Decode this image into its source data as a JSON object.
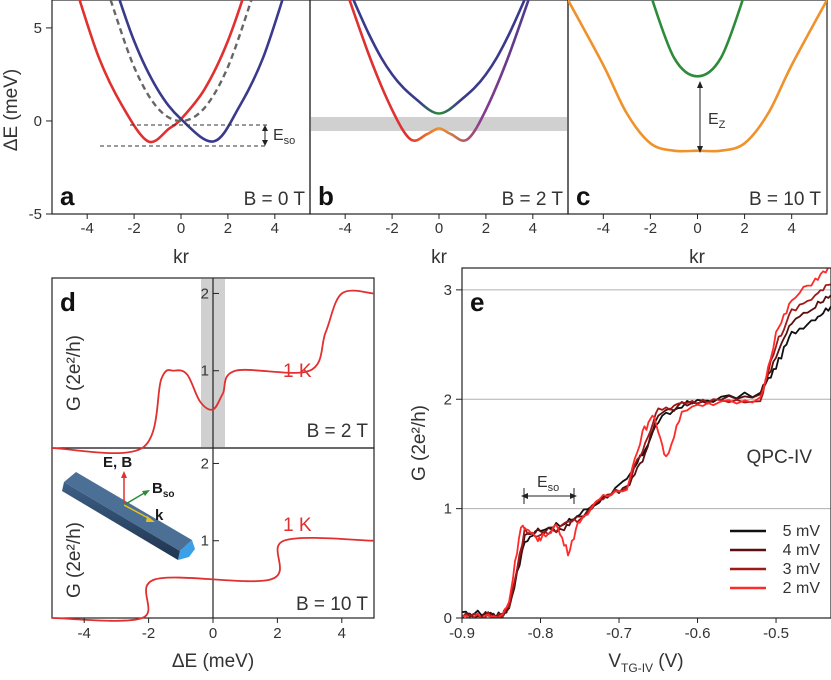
{
  "figure": {
    "panels": [
      {
        "letter": "a",
        "field": "B = 0 T"
      },
      {
        "letter": "b",
        "field": "B = 2 T"
      },
      {
        "letter": "c",
        "field": "B = 10 T"
      },
      {
        "letter": "d",
        "field_top": "B = 2 T",
        "field_bottom": "B = 10 T",
        "temp": "1 K"
      },
      {
        "letter": "e",
        "device": "QPC-IV"
      }
    ],
    "labels": {
      "energy_axis": "ΔE (meV)",
      "kr": "kr",
      "g_axis": "G (2e²/h)",
      "delta_e_axis": "ΔE (meV)",
      "vtg_axis": "V",
      "vtg_sub": "TG-IV",
      "vtg_unit": " (V)",
      "eso": "E",
      "eso_sub": "so",
      "ez": "E",
      "ez_sub": "Z",
      "inset_eb": "E, B",
      "inset_bso": "B",
      "inset_bso_sub": "so",
      "inset_k": "k"
    },
    "colors": {
      "red": "#e03030",
      "blue": "#3a3a8c",
      "green": "#2e8b3a",
      "orange": "#f0922b",
      "gray_band": "#d0d0d0",
      "nanowire": "#2e4a6b"
    }
  },
  "chart_data": [
    {
      "type": "line",
      "panel": "a",
      "title": "",
      "xlabel": "kr",
      "ylabel": "ΔE (meV)",
      "xlim": [
        -5.5,
        5.5
      ],
      "ylim": [
        -5,
        6.5
      ],
      "xticks": [
        "-4",
        "-2",
        "0",
        "2",
        "4"
      ],
      "yticks": [
        "-5",
        "0",
        "5"
      ],
      "series": [
        {
          "style": "red",
          "x": [
            -4.5,
            -3.5,
            -2.5,
            -1.4,
            -0.5,
            0,
            1,
            2,
            3,
            3.6
          ],
          "y": [
            7.2,
            3.4,
            0.8,
            -1.1,
            -0.4,
            0.1,
            1.7,
            4.3,
            8.0,
            10.7
          ]
        },
        {
          "style": "blue",
          "x": [
            -3.6,
            -3,
            -2,
            -1,
            0,
            1.4,
            2.5,
            3.5,
            4.5
          ],
          "y": [
            10.7,
            8.0,
            4.3,
            1.7,
            0.1,
            -1.1,
            0.8,
            3.4,
            7.2
          ]
        },
        {
          "style": "gray-dashed",
          "x": [
            -3,
            -2,
            -1,
            0,
            1,
            2,
            3
          ],
          "y": [
            6.5,
            2.9,
            0.7,
            0.0,
            0.7,
            2.9,
            6.5
          ]
        }
      ]
    },
    {
      "type": "line",
      "panel": "b",
      "title": "",
      "xlabel": "kr",
      "ylabel": "",
      "xlim": [
        -5.5,
        5.5
      ],
      "ylim": [
        -5,
        6.5
      ],
      "xticks": [
        "-4",
        "-2",
        "0",
        "2",
        "4"
      ],
      "series": [
        {
          "style": "upper",
          "x": [
            -4.5,
            -3,
            -2,
            -1,
            0,
            1,
            2,
            3,
            4.5
          ],
          "y": [
            9.0,
            4.7,
            2.5,
            1.2,
            0.4,
            1.2,
            2.5,
            4.7,
            9.0
          ]
        },
        {
          "style": "lower",
          "x": [
            -4.5,
            -3,
            -2,
            -1.2,
            -0.5,
            0,
            0.5,
            1.2,
            2,
            3,
            4.5
          ],
          "y": [
            9.0,
            3.6,
            0.6,
            -1.0,
            -0.7,
            -0.4,
            -0.7,
            -1.0,
            0.6,
            3.6,
            9.0
          ]
        }
      ]
    },
    {
      "type": "line",
      "panel": "c",
      "title": "",
      "xlabel": "kr",
      "ylabel": "",
      "xlim": [
        -5.5,
        5.5
      ],
      "ylim": [
        -5,
        6.5
      ],
      "xticks": [
        "-4",
        "-2",
        "0",
        "2",
        "4"
      ],
      "series": [
        {
          "style": "green",
          "x": [
            -2,
            -1,
            0,
            1,
            2
          ],
          "y": [
            6.8,
            3.4,
            2.4,
            3.4,
            6.8
          ]
        },
        {
          "style": "orange",
          "x": [
            -5.5,
            -4,
            -3,
            -2,
            -1,
            0,
            1,
            2,
            3,
            4,
            5.5
          ],
          "y": [
            6.5,
            3.0,
            0.4,
            -1.2,
            -1.6,
            -1.6,
            -1.6,
            -1.2,
            0.4,
            3.0,
            6.5
          ]
        }
      ]
    },
    {
      "type": "line",
      "panel": "d-top",
      "title": "",
      "xlabel": "",
      "ylabel": "G (2e²/h)",
      "xlim": [
        -5,
        5
      ],
      "ylim": [
        0,
        2.2
      ],
      "yticks": [
        "1",
        "2"
      ],
      "series": [
        {
          "name": "1 K",
          "x": [
            -5,
            -2.2,
            -1.6,
            -1.2,
            -0.8,
            -0.4,
            0,
            0.3,
            0.7,
            3,
            3.5,
            4,
            5
          ],
          "y": [
            0,
            0,
            0.9,
            1.0,
            0.95,
            0.6,
            0.5,
            0.7,
            1.0,
            1.0,
            1.5,
            2.0,
            2.0
          ]
        }
      ]
    },
    {
      "type": "line",
      "panel": "d-bottom",
      "title": "",
      "xlabel": "ΔE (meV)",
      "ylabel": "G (2e²/h)",
      "xlim": [
        -5,
        5
      ],
      "ylim": [
        0,
        2.2
      ],
      "yticks": [
        "1",
        "2"
      ],
      "xticks": [
        "-4",
        "-2",
        "0",
        "2",
        "4"
      ],
      "series": [
        {
          "name": "1 K",
          "x": [
            -5,
            -2.2,
            -1.8,
            1.8,
            2.2,
            5
          ],
          "y": [
            0,
            0,
            0.5,
            0.5,
            1.0,
            1.0
          ]
        }
      ]
    },
    {
      "type": "line",
      "panel": "e",
      "title": "",
      "xlabel": "V TG-IV (V)",
      "ylabel": "G (2e²/h)",
      "xlim": [
        -0.9,
        -0.43
      ],
      "ylim": [
        0,
        3.2
      ],
      "xticks": [
        "-0.9",
        "-0.8",
        "-0.7",
        "-0.6",
        "-0.5"
      ],
      "yticks": [
        "0",
        "1",
        "2",
        "3"
      ],
      "series": [
        {
          "name": "5 mV",
          "x": [
            -0.9,
            -0.87,
            -0.85,
            -0.84,
            -0.82,
            -0.8,
            -0.77,
            -0.75,
            -0.72,
            -0.69,
            -0.67,
            -0.65,
            -0.62,
            -0.58,
            -0.52,
            -0.5,
            -0.48,
            -0.45,
            -0.43
          ],
          "y": [
            0.03,
            0.05,
            0.02,
            0.1,
            0.7,
            0.82,
            0.85,
            0.95,
            1.1,
            1.25,
            1.5,
            1.8,
            1.95,
            2.0,
            2.05,
            2.3,
            2.6,
            2.75,
            2.85
          ]
        },
        {
          "name": "4 mV",
          "x": [
            -0.9,
            -0.87,
            -0.85,
            -0.84,
            -0.82,
            -0.8,
            -0.77,
            -0.75,
            -0.72,
            -0.69,
            -0.67,
            -0.65,
            -0.62,
            -0.58,
            -0.52,
            -0.5,
            -0.48,
            -0.45,
            -0.43
          ],
          "y": [
            0.02,
            0.04,
            0.02,
            0.1,
            0.75,
            0.8,
            0.82,
            0.93,
            1.1,
            1.2,
            1.45,
            1.85,
            1.95,
            1.98,
            2.05,
            2.4,
            2.7,
            2.85,
            2.95
          ]
        },
        {
          "name": "3 mV",
          "x": [
            -0.9,
            -0.87,
            -0.85,
            -0.84,
            -0.82,
            -0.8,
            -0.77,
            -0.75,
            -0.72,
            -0.69,
            -0.67,
            -0.65,
            -0.62,
            -0.58,
            -0.52,
            -0.5,
            -0.48,
            -0.45,
            -0.43
          ],
          "y": [
            0.02,
            0.03,
            0.01,
            0.12,
            0.8,
            0.75,
            0.85,
            0.9,
            1.1,
            1.2,
            1.55,
            1.9,
            1.95,
            2.0,
            2.0,
            2.5,
            2.8,
            2.95,
            3.05
          ]
        },
        {
          "name": "2 mV",
          "x": [
            -0.9,
            -0.87,
            -0.85,
            -0.84,
            -0.825,
            -0.81,
            -0.8,
            -0.78,
            -0.765,
            -0.75,
            -0.72,
            -0.69,
            -0.67,
            -0.655,
            -0.64,
            -0.62,
            -0.58,
            -0.52,
            -0.5,
            -0.48,
            -0.45,
            -0.43
          ],
          "y": [
            0.01,
            0.02,
            0.01,
            0.15,
            0.85,
            0.75,
            0.72,
            0.85,
            0.6,
            0.9,
            1.1,
            1.2,
            1.7,
            1.85,
            1.45,
            1.9,
            1.95,
            2.0,
            2.6,
            2.9,
            3.1,
            3.2
          ]
        }
      ]
    }
  ]
}
